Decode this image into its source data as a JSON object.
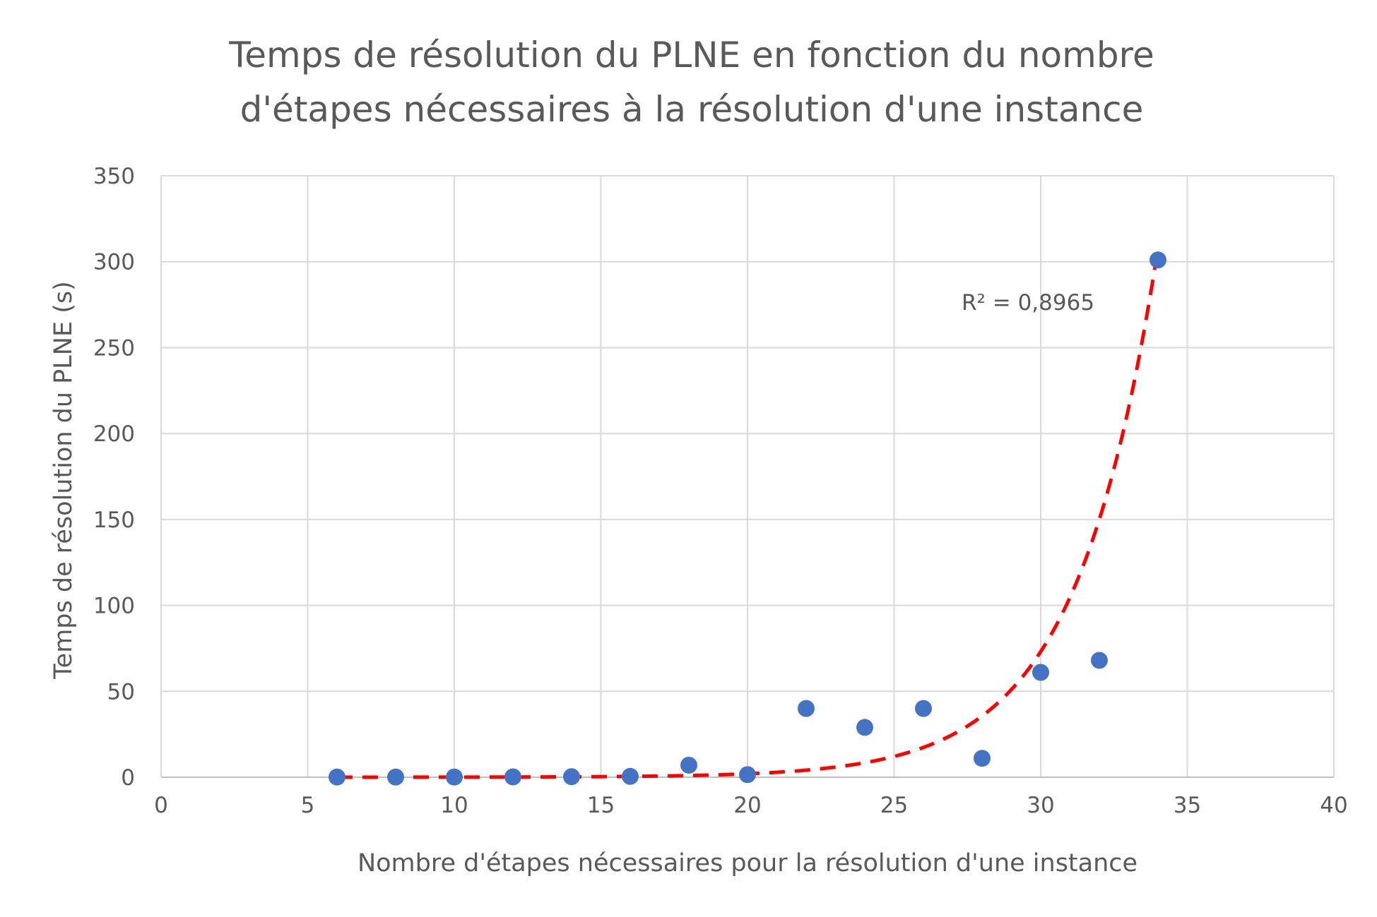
{
  "chart_data": {
    "type": "scatter",
    "title_lines": [
      "Temps de résolution du PLNE en fonction du nombre",
      "d'étapes nécessaires à la résolution d'une instance"
    ],
    "xlabel": "Nombre d'étapes nécessaires pour la résolution d'une instance",
    "ylabel": "Temps de résolution du PLNE (s)",
    "xlim": [
      0,
      40
    ],
    "ylim": [
      0,
      350
    ],
    "x_ticks": [
      0,
      5,
      10,
      15,
      20,
      25,
      30,
      35,
      40
    ],
    "y_ticks": [
      0,
      50,
      100,
      150,
      200,
      250,
      300,
      350
    ],
    "grid": true,
    "legend": "none",
    "series": [
      {
        "marker_color": "#4472C4",
        "points": [
          {
            "x": 6,
            "y": 0.1
          },
          {
            "x": 8,
            "y": 0.1
          },
          {
            "x": 10,
            "y": 0.1
          },
          {
            "x": 12,
            "y": 0.2
          },
          {
            "x": 14,
            "y": 0.3
          },
          {
            "x": 16,
            "y": 0.5
          },
          {
            "x": 18,
            "y": 7
          },
          {
            "x": 20,
            "y": 1.5
          },
          {
            "x": 22,
            "y": 40
          },
          {
            "x": 24,
            "y": 29
          },
          {
            "x": 26,
            "y": 40
          },
          {
            "x": 28,
            "y": 11
          },
          {
            "x": 30,
            "y": 61
          },
          {
            "x": 32,
            "y": 68
          },
          {
            "x": 34,
            "y": 301
          }
        ]
      }
    ],
    "trendline": {
      "type": "exponential",
      "color": "#FF0000",
      "style": "dashed",
      "x_range": [
        6,
        34
      ],
      "y_start": 0.013,
      "y_end": 308
    },
    "annotations": [
      {
        "text": "R² = 0,8965",
        "x": 27.3,
        "y": 272
      }
    ]
  }
}
